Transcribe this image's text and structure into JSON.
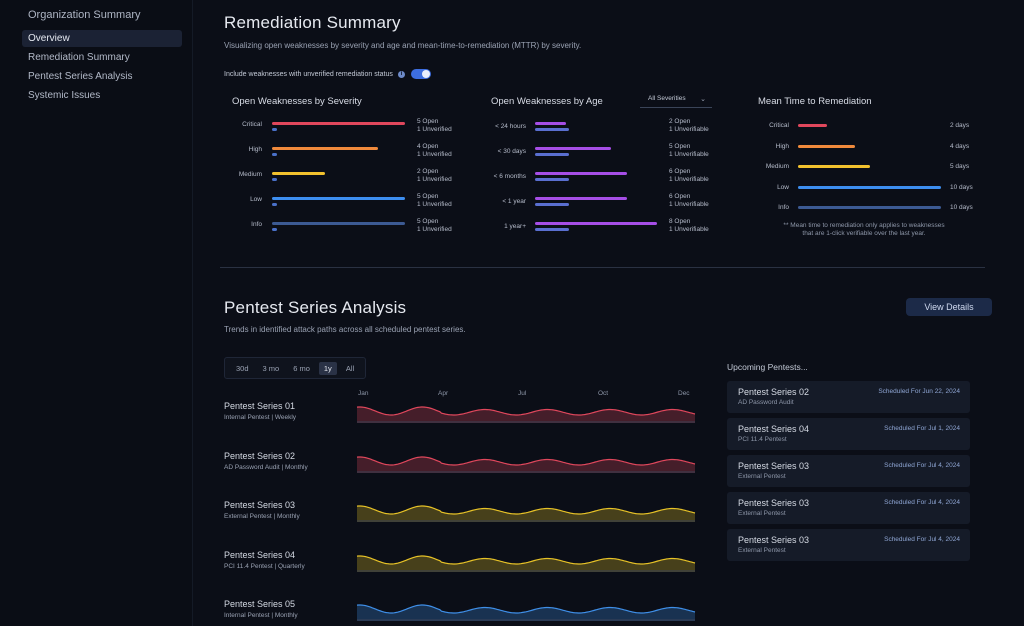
{
  "sidebar": {
    "title": "Organization Summary",
    "items": [
      {
        "label": "Overview",
        "active": true
      },
      {
        "label": "Remediation Summary",
        "active": false
      },
      {
        "label": "Pentest Series Analysis",
        "active": false
      },
      {
        "label": "Systemic Issues",
        "active": false
      }
    ]
  },
  "remediation": {
    "title": "Remediation Summary",
    "subtitle": "Visualizing open weaknesses by severity and age and mean-time-to-remediation (MTTR) by severity.",
    "toggle_label": "Include weaknesses with unverified remediation status",
    "toggle_on": true,
    "info_icon": "info-icon"
  },
  "colors": {
    "critical": "#e0475c",
    "high": "#f08a3c",
    "medium": "#f2c12e",
    "low": "#3d8ef0",
    "info": "#3c5a93",
    "unverified": "#4a71c9",
    "age": "#a64ee6",
    "age_sub": "#5a6fd0",
    "red_wave": "#e0475c",
    "yellow_wave": "#e7c227",
    "blue_wave": "#3f8fe8"
  },
  "severity_panel": {
    "title": "Open Weaknesses by Severity",
    "max": 5,
    "rows": [
      {
        "label": "Critical",
        "open": 5,
        "unverified": 1,
        "open_text": "5 Open",
        "unverified_text": "1 Unverified",
        "color_key": "critical"
      },
      {
        "label": "High",
        "open": 4,
        "unverified": 1,
        "open_text": "4 Open",
        "unverified_text": "1 Unverified",
        "color_key": "high"
      },
      {
        "label": "Medium",
        "open": 2,
        "unverified": 1,
        "open_text": "2 Open",
        "unverified_text": "1 Unverified",
        "color_key": "medium"
      },
      {
        "label": "Low",
        "open": 5,
        "unverified": 1,
        "open_text": "5 Open",
        "unverified_text": "1 Unverified",
        "color_key": "low"
      },
      {
        "label": "Info",
        "open": 5,
        "unverified": 1,
        "open_text": "5 Open",
        "unverified_text": "1 Unverified",
        "color_key": "info"
      }
    ]
  },
  "age_panel": {
    "title": "Open Weaknesses by Age",
    "filter": "All Severities",
    "max": 8,
    "rows": [
      {
        "label": "< 24 hours",
        "open": 2,
        "unverifiable": 1,
        "open_text": "2 Open",
        "unverifiable_text": "1 Unverifiable"
      },
      {
        "label": "< 30 days",
        "open": 5,
        "unverifiable": 1,
        "open_text": "5 Open",
        "unverifiable_text": "1 Unverifiable"
      },
      {
        "label": "< 6 months",
        "open": 6,
        "unverifiable": 1,
        "open_text": "6 Open",
        "unverifiable_text": "1 Unverifiable"
      },
      {
        "label": "< 1 year",
        "open": 6,
        "unverifiable": 1,
        "open_text": "6 Open",
        "unverifiable_text": "1 Unverifiable"
      },
      {
        "label": "1 year+",
        "open": 8,
        "unverifiable": 1,
        "open_text": "8 Open",
        "unverifiable_text": "1 Unverifiable"
      }
    ]
  },
  "mttr_panel": {
    "title": "Mean Time to Remediation",
    "max": 10,
    "rows": [
      {
        "label": "Critical",
        "days": 2,
        "text": "2 days",
        "color_key": "critical"
      },
      {
        "label": "High",
        "days": 4,
        "text": "4 days",
        "color_key": "high"
      },
      {
        "label": "Medium",
        "days": 5,
        "text": "5 days",
        "color_key": "medium"
      },
      {
        "label": "Low",
        "days": 10,
        "text": "10 days",
        "color_key": "low"
      },
      {
        "label": "Info",
        "days": 10,
        "text": "10 days",
        "color_key": "info"
      }
    ],
    "footnote_1": "** Mean time to remediation only applies to weaknesses",
    "footnote_2": "that are 1-click verifiable over the last year."
  },
  "pentest": {
    "title": "Pentest Series Analysis",
    "subtitle": "Trends in identified attack paths across all scheduled pentest series.",
    "view_details": "View Details",
    "ranges": [
      {
        "label": "30d",
        "active": false
      },
      {
        "label": "3 mo",
        "active": false
      },
      {
        "label": "6 mo",
        "active": false
      },
      {
        "label": "1y",
        "active": true
      },
      {
        "label": "All",
        "active": false
      }
    ],
    "months": [
      "Jan",
      "Apr",
      "Jul",
      "Oct",
      "Dec"
    ],
    "series": [
      {
        "name": "Pentest Series 01",
        "desc": "Internal Pentest | Weekly",
        "color_key": "red_wave"
      },
      {
        "name": "Pentest Series 02",
        "desc": "AD Password Audit | Monthly",
        "color_key": "red_wave"
      },
      {
        "name": "Pentest Series 03",
        "desc": "External Pentest | Monthly",
        "color_key": "yellow_wave"
      },
      {
        "name": "Pentest Series 04",
        "desc": "PCI 11.4 Pentest | Quarterly",
        "color_key": "yellow_wave"
      },
      {
        "name": "Pentest Series 05",
        "desc": "Internal Pentest | Monthly",
        "color_key": "blue_wave"
      }
    ],
    "upcoming_title": "Upcoming Pentests...",
    "upcoming": [
      {
        "name": "Pentest Series 02",
        "desc": "AD Password Audit",
        "date": "Scheduled For Jun 22, 2024"
      },
      {
        "name": "Pentest Series 04",
        "desc": "PCI 11.4 Pentest",
        "date": "Scheduled For Jul 1, 2024"
      },
      {
        "name": "Pentest Series 03",
        "desc": "External Pentest",
        "date": "Scheduled For Jul 4, 2024"
      },
      {
        "name": "Pentest Series 03",
        "desc": "External Pentest",
        "date": "Scheduled For Jul 4, 2024"
      },
      {
        "name": "Pentest Series 03",
        "desc": "External Pentest",
        "date": "Scheduled For Jul 4, 2024"
      }
    ]
  }
}
